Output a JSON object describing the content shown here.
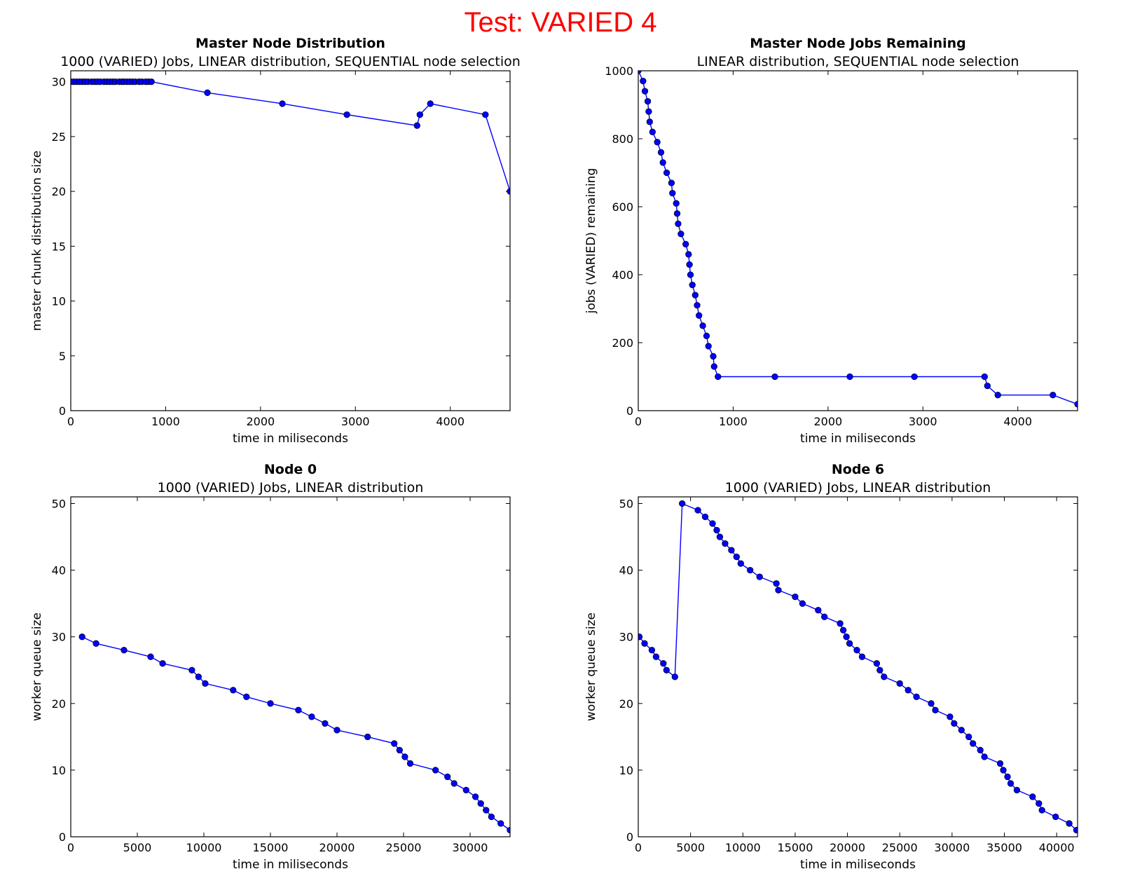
{
  "suptitle": "Test: VARIED 4",
  "colors": {
    "suptitle": "#ff0000",
    "series": "#0000ff",
    "marker": "#0000ff",
    "axes": "#000000"
  },
  "chart_data": [
    {
      "type": "line",
      "title": "Master Node Distribution",
      "subtitle": "1000 (VARIED) Jobs, LINEAR distribution, SEQUENTIAL node selection",
      "xlabel": "time in miliseconds",
      "ylabel": "master chunk distribution size",
      "xlim": [
        0,
        4630
      ],
      "ylim": [
        0,
        31
      ],
      "xticks": [
        0,
        1000,
        2000,
        3000,
        4000
      ],
      "yticks": [
        0,
        5,
        10,
        15,
        20,
        25,
        30
      ],
      "grid": false,
      "series": [
        {
          "x": [
            0,
            30,
            60,
            90,
            120,
            150,
            180,
            220,
            250,
            280,
            310,
            350,
            380,
            410,
            440,
            470,
            510,
            540,
            560,
            590,
            620,
            650,
            680,
            720,
            750,
            790,
            820,
            850,
            1440,
            2230,
            2910,
            3650,
            3680,
            3790,
            4370,
            4630
          ],
          "y": [
            30,
            30,
            30,
            30,
            30,
            30,
            30,
            30,
            30,
            30,
            30,
            30,
            30,
            30,
            30,
            30,
            30,
            30,
            30,
            30,
            30,
            30,
            30,
            30,
            30,
            30,
            30,
            30,
            29,
            28,
            27,
            26,
            27,
            28,
            27,
            20
          ]
        }
      ]
    },
    {
      "type": "line",
      "title": "Master Node Jobs Remaining",
      "subtitle": "LINEAR distribution, SEQUENTIAL node selection",
      "xlabel": "time in miliseconds",
      "ylabel": "jobs (VARIED) remaining",
      "xlim": [
        0,
        4630
      ],
      "ylim": [
        0,
        1000
      ],
      "xticks": [
        0,
        1000,
        2000,
        3000,
        4000
      ],
      "yticks": [
        0,
        200,
        400,
        600,
        800,
        1000
      ],
      "grid": false,
      "series": [
        {
          "x": [
            0,
            50,
            70,
            100,
            110,
            120,
            150,
            200,
            240,
            260,
            300,
            350,
            360,
            400,
            410,
            420,
            450,
            500,
            530,
            540,
            550,
            570,
            600,
            620,
            640,
            680,
            720,
            740,
            790,
            800,
            840,
            1440,
            2230,
            2910,
            3650,
            3680,
            3790,
            4370,
            4630
          ],
          "y": [
            1000,
            970,
            940,
            910,
            880,
            850,
            820,
            790,
            760,
            730,
            700,
            670,
            640,
            610,
            580,
            550,
            520,
            490,
            460,
            430,
            400,
            370,
            340,
            310,
            280,
            250,
            220,
            190,
            160,
            130,
            100,
            100,
            100,
            100,
            100,
            73,
            46,
            46,
            19
          ]
        }
      ]
    },
    {
      "type": "line",
      "title": "Node 0",
      "subtitle": "1000 (VARIED) Jobs, LINEAR distribution",
      "xlabel": "time in miliseconds",
      "ylabel": "worker queue size",
      "xlim": [
        0,
        33000
      ],
      "ylim": [
        0,
        51
      ],
      "xticks": [
        0,
        5000,
        10000,
        15000,
        20000,
        25000,
        30000
      ],
      "yticks": [
        0,
        10,
        20,
        30,
        40,
        50
      ],
      "grid": false,
      "series": [
        {
          "x": [
            850,
            1900,
            4000,
            6000,
            6900,
            9100,
            9600,
            10100,
            12200,
            13200,
            15000,
            17100,
            18100,
            19100,
            20000,
            22300,
            24300,
            24700,
            25100,
            25500,
            27400,
            28300,
            28800,
            29700,
            30400,
            30800,
            31200,
            31600,
            32300,
            33000
          ],
          "y": [
            30,
            29,
            28,
            27,
            26,
            25,
            24,
            23,
            22,
            21,
            20,
            19,
            18,
            17,
            16,
            15,
            14,
            13,
            12,
            11,
            10,
            9,
            8,
            7,
            6,
            5,
            4,
            3,
            2,
            1
          ]
        }
      ]
    },
    {
      "type": "line",
      "title": "Node 6",
      "subtitle": "1000 (VARIED) Jobs, LINEAR distribution",
      "xlabel": "time in miliseconds",
      "ylabel": "worker queue size",
      "xlim": [
        0,
        42000
      ],
      "ylim": [
        0,
        51
      ],
      "xticks": [
        0,
        5000,
        10000,
        15000,
        20000,
        25000,
        30000,
        35000,
        40000
      ],
      "yticks": [
        0,
        10,
        20,
        30,
        40,
        50
      ],
      "grid": false,
      "series": [
        {
          "x": [
            100,
            600,
            1300,
            1700,
            2400,
            2700,
            3500,
            4200,
            5700,
            6400,
            7100,
            7500,
            7800,
            8300,
            8900,
            9400,
            9800,
            10700,
            11600,
            13200,
            13400,
            15000,
            15700,
            17200,
            17800,
            19300,
            19600,
            19900,
            20200,
            20900,
            21400,
            22800,
            23100,
            23500,
            25000,
            25800,
            26600,
            28000,
            28400,
            29800,
            30200,
            30900,
            31600,
            32000,
            32700,
            33100,
            34600,
            34900,
            35300,
            35600,
            36200,
            37700,
            38300,
            38600,
            39900,
            41200,
            41900
          ],
          "y": [
            30,
            29,
            28,
            27,
            26,
            25,
            24,
            50,
            49,
            48,
            47,
            46,
            45,
            44,
            43,
            42,
            41,
            40,
            39,
            38,
            37,
            36,
            35,
            34,
            33,
            32,
            31,
            30,
            29,
            28,
            27,
            26,
            25,
            24,
            23,
            22,
            21,
            20,
            19,
            18,
            17,
            16,
            15,
            14,
            13,
            12,
            11,
            10,
            9,
            8,
            7,
            6,
            5,
            4,
            3,
            2,
            1
          ]
        }
      ]
    }
  ]
}
